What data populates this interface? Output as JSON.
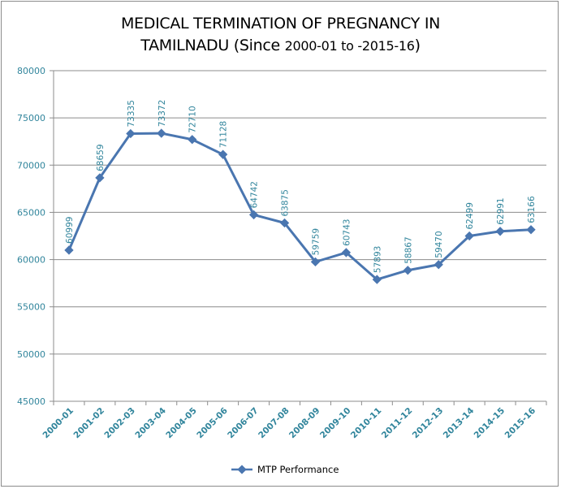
{
  "chart_data": {
    "type": "line",
    "title_line1": "MEDICAL TERMINATION OF PREGNANCY IN",
    "title_line2_large": "TAMILNADU (Since ",
    "title_line2_small": "2000-01 to -2015-16",
    "title_line2_end": ")",
    "categories": [
      "2000-01",
      "2001-02",
      "2002-03",
      "2003-04",
      "2004-05",
      "2005-06",
      "2006-07",
      "2007-08",
      "2008-09",
      "2009-10",
      "2010-11",
      "2011-12",
      "2012-13",
      "2013-14",
      "2014-15",
      "2015-16"
    ],
    "series": [
      {
        "name": "MTP Performance",
        "values": [
          60999,
          68659,
          73335,
          73372,
          72710,
          71128,
          64742,
          63875,
          59759,
          60743,
          57893,
          58867,
          59470,
          62499,
          62991,
          63166
        ],
        "color": "#4a76b0"
      }
    ],
    "y_ticks": [
      "45000",
      "50000",
      "55000",
      "60000",
      "65000",
      "70000",
      "75000",
      "80000"
    ],
    "ylim": [
      45000,
      80000
    ],
    "y_step": 5000,
    "xlabel": "",
    "ylabel": "",
    "grid": true,
    "legend_position": "bottom",
    "data_labels": true,
    "label_color": "#31859c"
  }
}
